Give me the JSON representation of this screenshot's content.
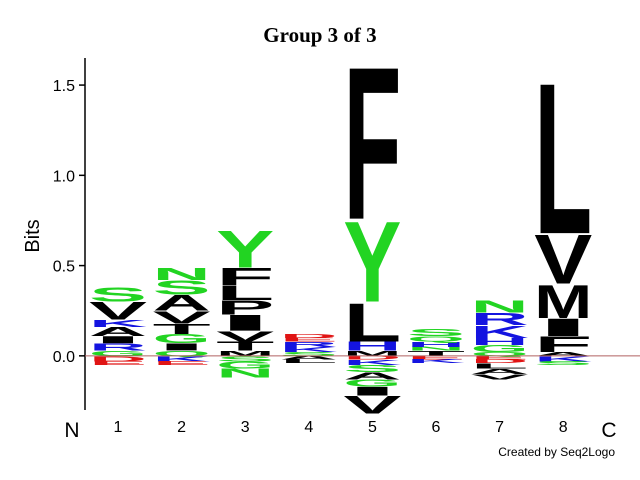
{
  "chart_data": {
    "type": "logo",
    "title": "Group 3 of 3",
    "y_label": "Bits",
    "categories": [
      "1",
      "2",
      "3",
      "4",
      "5",
      "6",
      "7",
      "8"
    ],
    "start_label": "N",
    "end_label": "C",
    "credit": "Created by Seq2Logo",
    "ylim": [
      -0.3,
      1.65
    ],
    "yticks": [
      {
        "value": 0,
        "label": "0.0"
      },
      {
        "value": 0.5,
        "label": "0.5"
      },
      {
        "value": 1,
        "label": "1.0"
      },
      {
        "value": 1.5,
        "label": "1.5"
      }
    ],
    "letter_colors": {
      "A": "#000000",
      "V": "#000000",
      "L": "#000000",
      "I": "#000000",
      "F": "#000000",
      "P": "#000000",
      "M": "#000000",
      "T": "#000000",
      "W": "#000000",
      "S": "#22d422",
      "G": "#22d422",
      "N": "#22d422",
      "Q": "#22d422",
      "Y": "#22d422",
      "C": "#22d422",
      "K": "#1414e0",
      "R": "#1414e0",
      "H": "#1414e0",
      "D": "#e01414",
      "E": "#e01414"
    },
    "positions": [
      {
        "above": [
          {
            "letter": "G",
            "value": 0.03
          },
          {
            "letter": "R",
            "value": 0.04
          },
          {
            "letter": "I",
            "value": 0.04
          },
          {
            "letter": "A",
            "value": 0.05
          },
          {
            "letter": "K",
            "value": 0.04
          },
          {
            "letter": "V",
            "value": 0.1
          },
          {
            "letter": "S",
            "value": 0.08
          }
        ],
        "below": [
          {
            "letter": "D",
            "value": 0.03
          },
          {
            "letter": "E",
            "value": 0.02
          }
        ]
      },
      {
        "above": [
          {
            "letter": "Q",
            "value": 0.03
          },
          {
            "letter": "I",
            "value": 0.04
          },
          {
            "letter": "G",
            "value": 0.05
          },
          {
            "letter": "T",
            "value": 0.06
          },
          {
            "letter": "V",
            "value": 0.07
          },
          {
            "letter": "A",
            "value": 0.09
          },
          {
            "letter": "S",
            "value": 0.08
          },
          {
            "letter": "N",
            "value": 0.07
          }
        ],
        "below": [
          {
            "letter": "K",
            "value": 0.03
          },
          {
            "letter": "E",
            "value": 0.02
          }
        ]
      },
      {
        "above": [
          {
            "letter": "M",
            "value": 0.03
          },
          {
            "letter": "T",
            "value": 0.05
          },
          {
            "letter": "V",
            "value": 0.06
          },
          {
            "letter": "I",
            "value": 0.09
          },
          {
            "letter": "P",
            "value": 0.08
          },
          {
            "letter": "L",
            "value": 0.08
          },
          {
            "letter": "F",
            "value": 0.1
          },
          {
            "letter": "Y",
            "value": 0.21
          }
        ],
        "below": [
          {
            "letter": "S",
            "value": 0.03
          },
          {
            "letter": "G",
            "value": 0.04
          },
          {
            "letter": "N",
            "value": 0.05
          }
        ]
      },
      {
        "above": [
          {
            "letter": "S",
            "value": 0.02
          },
          {
            "letter": "K",
            "value": 0.03
          },
          {
            "letter": "R",
            "value": 0.03
          },
          {
            "letter": "E",
            "value": 0.02
          },
          {
            "letter": "D",
            "value": 0.02
          }
        ],
        "below": [
          {
            "letter": "A",
            "value": 0.02
          },
          {
            "letter": "L",
            "value": 0.02
          }
        ]
      },
      {
        "above": [
          {
            "letter": "M",
            "value": 0.03
          },
          {
            "letter": "H",
            "value": 0.05
          },
          {
            "letter": "L",
            "value": 0.22
          },
          {
            "letter": "Y",
            "value": 0.46
          },
          {
            "letter": "F",
            "value": 0.87
          }
        ],
        "below": [
          {
            "letter": "D",
            "value": 0.02
          },
          {
            "letter": "K",
            "value": 0.03
          },
          {
            "letter": "S",
            "value": 0.04
          },
          {
            "letter": "A",
            "value": 0.04
          },
          {
            "letter": "G",
            "value": 0.04
          },
          {
            "letter": "I",
            "value": 0.05
          },
          {
            "letter": "V",
            "value": 0.1
          }
        ]
      },
      {
        "above": [
          {
            "letter": "T",
            "value": 0.03
          },
          {
            "letter": "N",
            "value": 0.02
          },
          {
            "letter": "H",
            "value": 0.03
          },
          {
            "letter": "Q",
            "value": 0.03
          },
          {
            "letter": "S",
            "value": 0.04
          }
        ],
        "below": [
          {
            "letter": "E",
            "value": 0.02
          },
          {
            "letter": "K",
            "value": 0.02
          }
        ]
      },
      {
        "above": [
          {
            "letter": "Q",
            "value": 0.02
          },
          {
            "letter": "G",
            "value": 0.04
          },
          {
            "letter": "H",
            "value": 0.04
          },
          {
            "letter": "K",
            "value": 0.07
          },
          {
            "letter": "R",
            "value": 0.07
          },
          {
            "letter": "N",
            "value": 0.07
          }
        ],
        "below": [
          {
            "letter": "E",
            "value": 0.02
          },
          {
            "letter": "D",
            "value": 0.02
          },
          {
            "letter": "L",
            "value": 0.03
          },
          {
            "letter": "A",
            "value": 0.03
          },
          {
            "letter": "V",
            "value": 0.03
          }
        ]
      },
      {
        "above": [
          {
            "letter": "A",
            "value": 0.02
          },
          {
            "letter": "F",
            "value": 0.09
          },
          {
            "letter": "I",
            "value": 0.1
          },
          {
            "letter": "M",
            "value": 0.19
          },
          {
            "letter": "V",
            "value": 0.28
          },
          {
            "letter": "L",
            "value": 0.86
          }
        ],
        "below": [
          {
            "letter": "K",
            "value": 0.03
          },
          {
            "letter": "S",
            "value": 0.02
          }
        ]
      }
    ]
  }
}
